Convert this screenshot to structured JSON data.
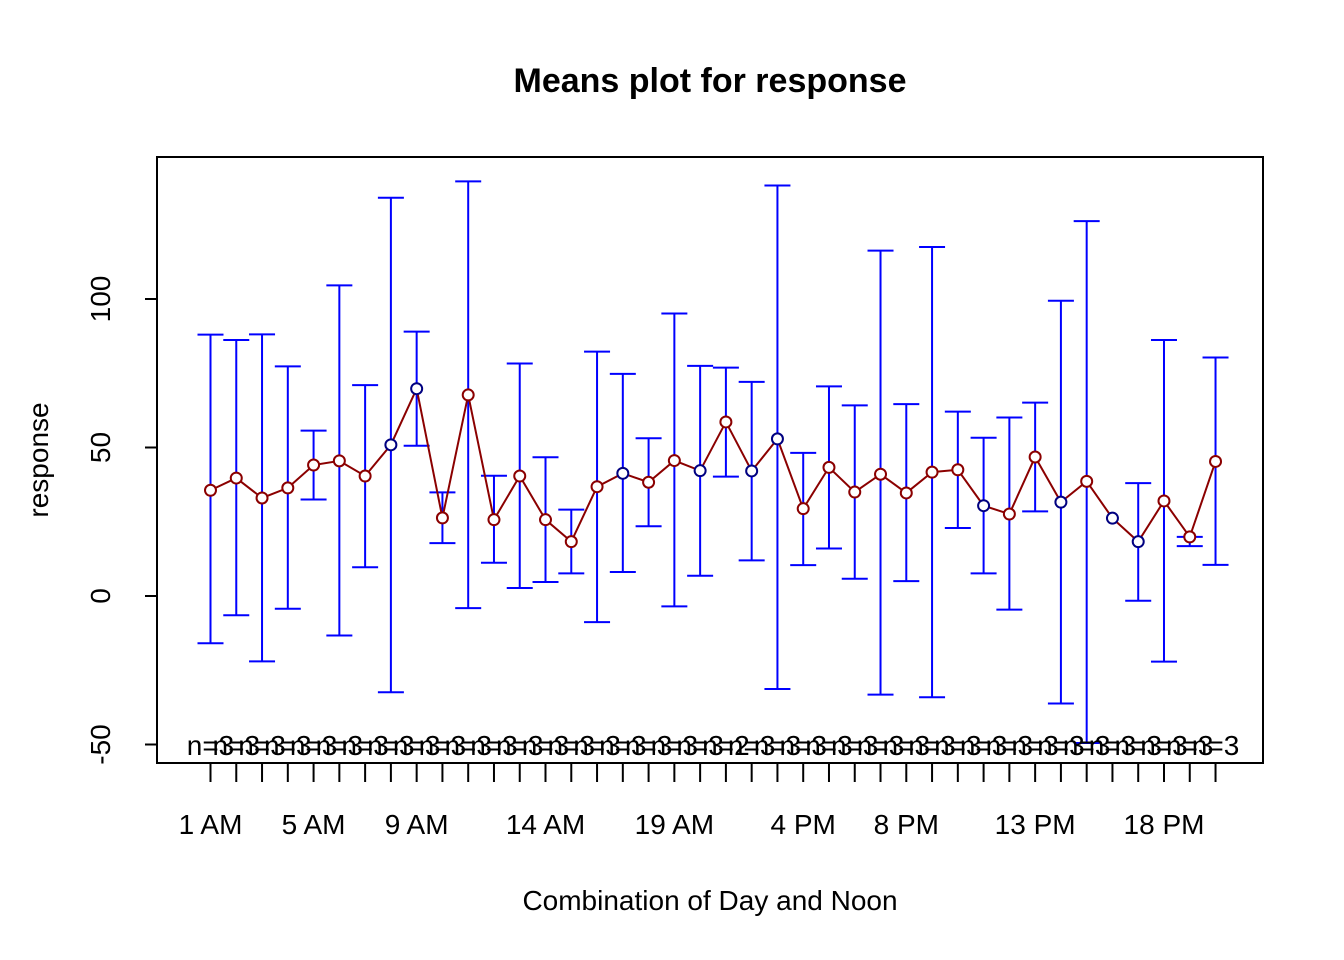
{
  "chart_data": {
    "type": "line",
    "title": "Means plot for response",
    "xlabel": "Combination of Day and Noon",
    "ylabel": "response",
    "ylim": [
      -56,
      142
    ],
    "y_ticks": [
      -50,
      0,
      50,
      100
    ],
    "y_tick_labels": [
      "-50",
      "0",
      "50",
      "100"
    ],
    "x_tick_labels": [
      {
        "index": 1,
        "label": "1 AM"
      },
      {
        "index": 5,
        "label": "5 AM"
      },
      {
        "index": 9,
        "label": "9 AM"
      },
      {
        "index": 14,
        "label": "14 AM"
      },
      {
        "index": 19,
        "label": "19 AM"
      },
      {
        "index": 24,
        "label": "4 PM"
      },
      {
        "index": 28,
        "label": "8 PM"
      },
      {
        "index": 33,
        "label": "13 PM"
      },
      {
        "index": 38,
        "label": "18 PM"
      }
    ],
    "n_labels": [
      "n=3",
      "n=3",
      "n=3",
      "n=3",
      "n=3",
      "n=3",
      "n=3",
      "n=3",
      "n=3",
      "n=3",
      "n=3",
      "n=3",
      "n=3",
      "n=3",
      "n=3",
      "n=3",
      "n=3",
      "n=3",
      "n=3",
      "n=3",
      "n=2",
      "n=3",
      "n=3",
      "n=3",
      "n=3",
      "n=3",
      "n=3",
      "n=3",
      "n=3",
      "n=3",
      "n=3",
      "n=3",
      "n=3",
      "n=3",
      "n=3",
      "n=3",
      "n=3",
      "n=3",
      "n=3",
      "n=3"
    ],
    "means": [
      35.6,
      39.7,
      33.0,
      36.4,
      44.1,
      45.5,
      40.4,
      50.9,
      69.8,
      26.3,
      67.7,
      25.7,
      40.4,
      25.7,
      18.3,
      36.8,
      41.3,
      38.3,
      45.6,
      42.2,
      58.6,
      42.1,
      52.9,
      29.4,
      43.3,
      35.0,
      41.0,
      34.7,
      41.7,
      42.5,
      30.4,
      27.6,
      46.8,
      31.6,
      38.6,
      26.2,
      18.3,
      32.0,
      19.9,
      45.3
    ],
    "upper": [
      88.0,
      86.2,
      88.1,
      77.3,
      55.7,
      104.6,
      71.0,
      134.1,
      89.0,
      34.9,
      139.6,
      40.5,
      78.3,
      46.7,
      29.1,
      82.3,
      74.8,
      53.1,
      95.1,
      77.5,
      76.9,
      72.1,
      138.2,
      48.2,
      70.6,
      64.2,
      116.3,
      64.6,
      117.5,
      62.1,
      53.3,
      60.1,
      65.1,
      99.4,
      126.2,
      26.2,
      38.0,
      86.2,
      19.9,
      80.3
    ],
    "lower": [
      -15.9,
      -6.5,
      -22.0,
      -4.3,
      32.5,
      -13.3,
      9.7,
      -32.4,
      50.6,
      17.8,
      -4.1,
      11.2,
      2.7,
      4.7,
      7.6,
      -8.8,
      8.1,
      23.5,
      -3.5,
      6.8,
      40.2,
      12.0,
      -31.3,
      10.4,
      16.0,
      5.8,
      -33.2,
      5.0,
      -34.1,
      22.9,
      7.6,
      -4.6,
      28.5,
      -36.2,
      -49.5,
      26.2,
      -1.6,
      -22.1,
      16.8,
      10.5
    ],
    "hidden_points": [
      8,
      9,
      17,
      20,
      22,
      23,
      31,
      34,
      36,
      37
    ],
    "point_color_dark": "#000080",
    "point_color_red": "#8B0000",
    "errorbar_color": "#0000FF",
    "line_color": "#8B0000"
  }
}
